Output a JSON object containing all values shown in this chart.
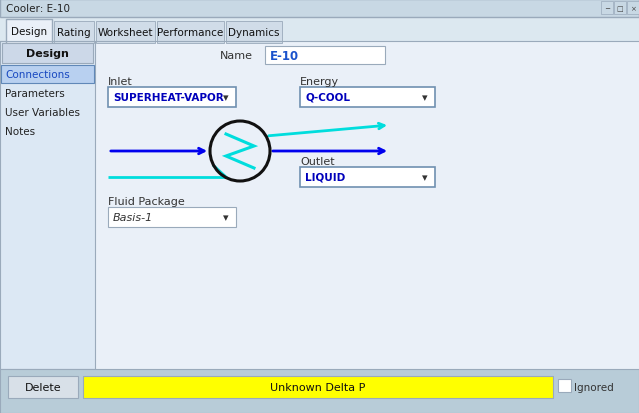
{
  "title": "Cooler: E-10",
  "bg_outer": "#b8ccd8",
  "bg_main": "#dce8f0",
  "bg_content": "#eaf0f8",
  "tabs": [
    "Design",
    "Rating",
    "Worksheet",
    "Performance",
    "Dynamics"
  ],
  "active_tab": "Design",
  "sidebar_items": [
    "Connections",
    "Parameters",
    "User Variables",
    "Notes"
  ],
  "active_sidebar": "Connections",
  "name_label": "Name",
  "name_value": "E-10",
  "inlet_label": "Inlet",
  "inlet_value": "SUPERHEAT-VAPOR",
  "energy_label": "Energy",
  "energy_value": "Q-COOL",
  "outlet_label": "Outlet",
  "outlet_value": "LIQUID",
  "fluid_pkg_label": "Fluid Package",
  "fluid_pkg_value": "Basis-1",
  "status_text": "Unknown Delta P",
  "delete_btn": "Delete",
  "ignored_text": "Ignored",
  "design_section_label": "Design",
  "blue_color": "#0000ee",
  "cyan_color": "#00dddd",
  "field_bg": "#ffffff",
  "field_border": "#7090b0",
  "tab_bg_inactive": "#d0dce8",
  "tab_bg_active": "#eaf0f8",
  "sidebar_active_bg": "#b8d0f0",
  "sidebar_bg": "#dce8f4",
  "status_bar_bg": "#ffff00",
  "border_color": "#9aaabb",
  "titlebar_bg": "#c8d8e4"
}
